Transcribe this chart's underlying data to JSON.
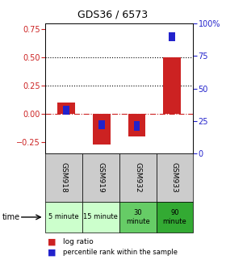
{
  "title": "GDS36 / 6573",
  "samples": [
    "GSM918",
    "GSM919",
    "GSM932",
    "GSM933"
  ],
  "time_labels": [
    "5 minute",
    "15 minute",
    "30\nminute",
    "90\nminute"
  ],
  "log_ratio": [
    0.1,
    -0.27,
    -0.2,
    0.5
  ],
  "percentile": [
    33,
    22,
    21,
    90
  ],
  "bar_color": "#cc2222",
  "pct_color": "#2222cc",
  "left_ylim": [
    -0.35,
    0.8
  ],
  "right_ylim": [
    0,
    100
  ],
  "left_ticks": [
    -0.25,
    0,
    0.25,
    0.5,
    0.75
  ],
  "right_ticks": [
    0,
    25,
    50,
    75,
    100
  ],
  "right_tick_labels": [
    "0",
    "25",
    "50",
    "75",
    "100%"
  ],
  "hline_dotted": [
    0.25,
    0.5
  ],
  "hline_dashdot": 0.0,
  "background_color": "#ffffff",
  "time_row_colors": [
    "#ccffcc",
    "#ccffcc",
    "#66cc66",
    "#33aa33"
  ],
  "gsm_row_color": "#cccccc",
  "bar_width": 0.5,
  "pct_marker_size": 0.08
}
